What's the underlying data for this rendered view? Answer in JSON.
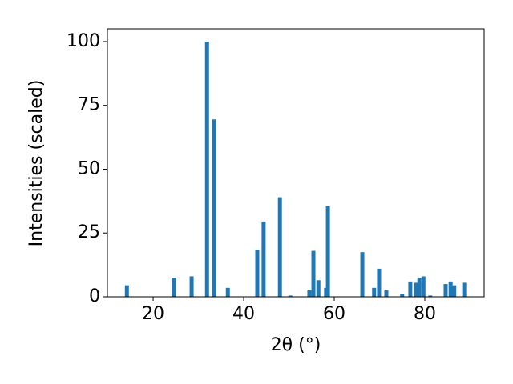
{
  "chart_data": {
    "type": "bar",
    "xlabel": "2θ (°)",
    "ylabel": "Intensities (scaled)",
    "x": [
      14.2,
      24.6,
      28.5,
      31.9,
      33.5,
      36.5,
      43.0,
      44.4,
      48.0,
      50.3,
      54.5,
      55.4,
      56.5,
      58.2,
      58.6,
      66.2,
      68.8,
      69.9,
      71.5,
      75.0,
      76.8,
      78.1,
      78.8,
      79.7,
      81.2,
      84.6,
      85.7,
      86.5,
      88.7
    ],
    "values": [
      4.5,
      7.5,
      8,
      100,
      69.5,
      3.5,
      18.5,
      29.5,
      39,
      0.5,
      2.5,
      18,
      6.5,
      3.5,
      35.5,
      17.5,
      3.5,
      11,
      2.5,
      1,
      6,
      5.5,
      7.5,
      8,
      0.5,
      5,
      6,
      4.5,
      5.5
    ],
    "color": "#1f77b4",
    "xlim": [
      9.9,
      93.1
    ],
    "xticks": [
      20,
      40,
      60,
      80
    ],
    "ylim": [
      0,
      105
    ],
    "yticks": [
      0,
      25,
      50,
      75,
      100
    ]
  }
}
